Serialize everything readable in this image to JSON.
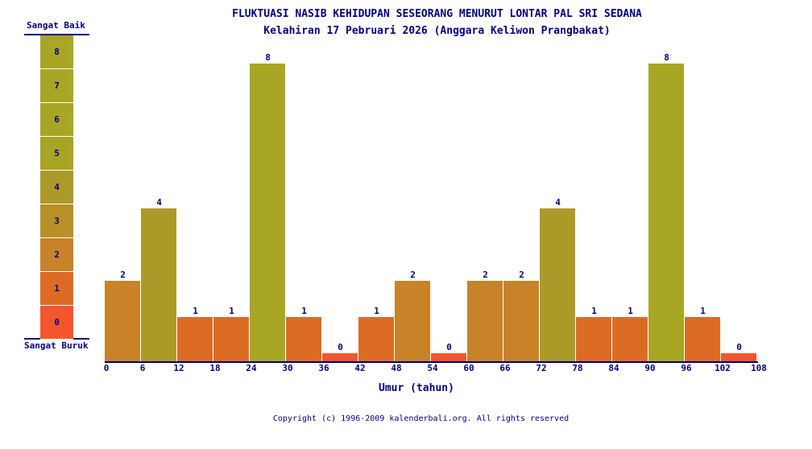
{
  "chart_data": {
    "type": "bar",
    "title": "FLUKTUASI NASIB KEHIDUPAN SESEORANG MENURUT LONTAR PAL SRI SEDANA",
    "subtitle": "Kelahiran 17 Pebruari 2026 (Anggara Keliwon Prangbakat)",
    "xlabel": "Umur (tahun)",
    "ylabel": "",
    "x_ticks": [
      "0",
      "6",
      "12",
      "18",
      "24",
      "30",
      "36",
      "42",
      "48",
      "54",
      "60",
      "66",
      "72",
      "78",
      "84",
      "90",
      "96",
      "102",
      "108"
    ],
    "values": [
      2,
      4,
      1,
      1,
      8,
      1,
      0,
      1,
      2,
      0,
      2,
      2,
      4,
      1,
      1,
      8,
      1,
      0
    ],
    "ylim": [
      0,
      8
    ],
    "legend": {
      "top_label": "Sangat Baik",
      "bottom_label": "Sangat Buruk",
      "levels": [
        "8",
        "7",
        "6",
        "5",
        "4",
        "3",
        "2",
        "1",
        "0"
      ]
    },
    "level_colors": [
      "#f4552c",
      "#dc6c24",
      "#c88228",
      "#b89028",
      "#ac9a28",
      "#a8a424",
      "#a8a624",
      "#a8a624",
      "#a8a624"
    ]
  },
  "footer": "Copyright (c) 1996-2009 kalenderbali.org. All rights reserved"
}
